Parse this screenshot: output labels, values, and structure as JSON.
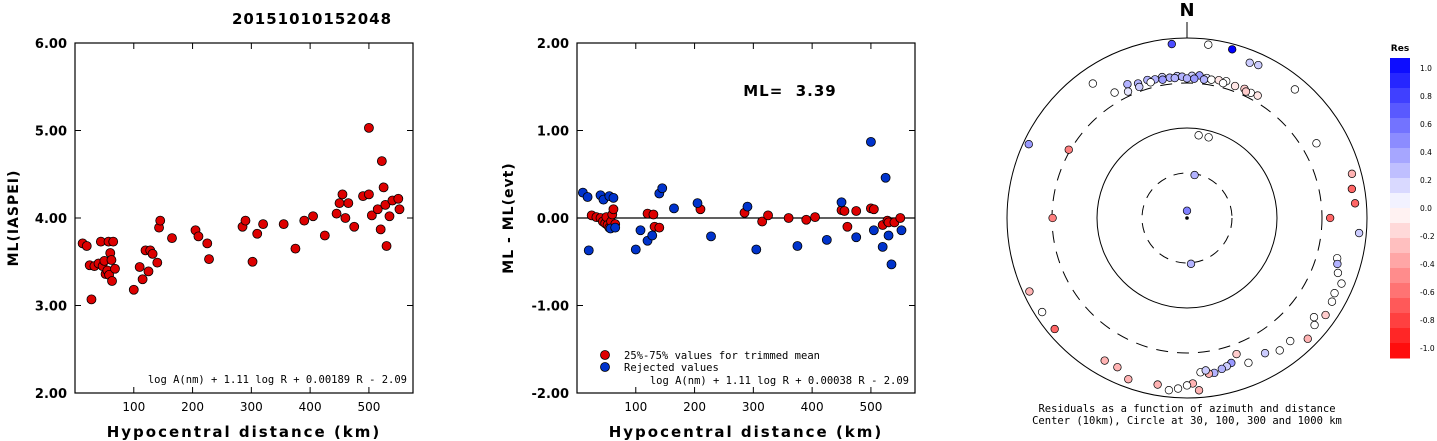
{
  "title": "20151010152048",
  "chart_data": [
    {
      "type": "scatter",
      "ylabel": "ML(IASPEI)",
      "xlabel": "Hypocentral distance (km)",
      "xlim": [
        0,
        575
      ],
      "ylim": [
        2.0,
        6.0
      ],
      "xticks": [
        "100",
        "200",
        "300",
        "400",
        "500"
      ],
      "yticks": [
        "2.00",
        "3.00",
        "4.00",
        "5.00",
        "6.00"
      ],
      "formula": "log A(nm) + 1.11 log R + 0.00189 R - 2.09",
      "color": "#dd0000",
      "series": [
        {
          "values": [
            [
              13,
              3.71
            ],
            [
              20,
              3.68
            ],
            [
              25,
              3.46
            ],
            [
              28,
              3.07
            ],
            [
              33,
              3.45
            ],
            [
              40,
              3.48
            ],
            [
              44,
              3.73
            ],
            [
              47,
              3.45
            ],
            [
              50,
              3.51
            ],
            [
              52,
              3.36
            ],
            [
              55,
              3.4
            ],
            [
              57,
              3.73
            ],
            [
              58,
              3.35
            ],
            [
              60,
              3.6
            ],
            [
              62,
              3.52
            ],
            [
              63,
              3.28
            ],
            [
              65,
              3.73
            ],
            [
              68,
              3.42
            ],
            [
              100,
              3.18
            ],
            [
              110,
              3.44
            ],
            [
              115,
              3.3
            ],
            [
              120,
              3.63
            ],
            [
              125,
              3.39
            ],
            [
              128,
              3.63
            ],
            [
              132,
              3.59
            ],
            [
              140,
              3.49
            ],
            [
              143,
              3.89
            ],
            [
              145,
              3.97
            ],
            [
              165,
              3.77
            ],
            [
              205,
              3.86
            ],
            [
              210,
              3.79
            ],
            [
              225,
              3.71
            ],
            [
              228,
              3.53
            ],
            [
              285,
              3.9
            ],
            [
              290,
              3.97
            ],
            [
              302,
              3.5
            ],
            [
              310,
              3.82
            ],
            [
              320,
              3.93
            ],
            [
              355,
              3.93
            ],
            [
              375,
              3.65
            ],
            [
              390,
              3.97
            ],
            [
              405,
              4.02
            ],
            [
              425,
              3.8
            ],
            [
              445,
              4.05
            ],
            [
              450,
              4.17
            ],
            [
              455,
              4.27
            ],
            [
              460,
              4.0
            ],
            [
              465,
              4.17
            ],
            [
              475,
              3.9
            ],
            [
              490,
              4.25
            ],
            [
              500,
              4.27
            ],
            [
              500,
              5.03
            ],
            [
              505,
              4.03
            ],
            [
              515,
              4.1
            ],
            [
              520,
              3.87
            ],
            [
              522,
              4.65
            ],
            [
              525,
              4.35
            ],
            [
              528,
              4.15
            ],
            [
              530,
              3.68
            ],
            [
              535,
              4.02
            ],
            [
              540,
              4.2
            ],
            [
              550,
              4.22
            ],
            [
              552,
              4.1
            ]
          ]
        }
      ]
    },
    {
      "type": "scatter",
      "ylabel": "ML - ML(evt)",
      "xlabel": "Hypocentral distance (km)",
      "xlim": [
        0,
        575
      ],
      "ylim": [
        -2.0,
        2.0
      ],
      "xticks": [
        "100",
        "200",
        "300",
        "400",
        "500"
      ],
      "yticks": [
        "-2.00",
        "-1.00",
        "0.00",
        "1.00",
        "2.00"
      ],
      "ml_label": "ML=  3.39",
      "formula": "log A(nm) + 1.11 log R + 0.00038 R - 2.09",
      "legend": [
        {
          "label": "25%-75% values for trimmed mean",
          "color": "#dd0000"
        },
        {
          "label": "Rejected values",
          "color": "#0033cc"
        }
      ],
      "series": [
        {
          "name": "25%-75% values for trimmed mean",
          "color": "#dd0000",
          "values": [
            [
              25,
              0.03
            ],
            [
              33,
              0.01
            ],
            [
              40,
              0.0
            ],
            [
              44,
              -0.04
            ],
            [
              48,
              -0.06
            ],
            [
              50,
              0.01
            ],
            [
              52,
              -0.08
            ],
            [
              55,
              -0.11
            ],
            [
              58,
              -0.04
            ],
            [
              60,
              0.04
            ],
            [
              62,
              0.1
            ],
            [
              65,
              -0.07
            ],
            [
              120,
              0.05
            ],
            [
              130,
              0.04
            ],
            [
              132,
              -0.1
            ],
            [
              140,
              -0.11
            ],
            [
              210,
              0.1
            ],
            [
              285,
              0.06
            ],
            [
              315,
              -0.04
            ],
            [
              325,
              0.03
            ],
            [
              360,
              0.0
            ],
            [
              390,
              -0.02
            ],
            [
              405,
              0.01
            ],
            [
              450,
              0.09
            ],
            [
              455,
              0.08
            ],
            [
              460,
              -0.1
            ],
            [
              475,
              0.08
            ],
            [
              500,
              0.11
            ],
            [
              505,
              0.1
            ],
            [
              520,
              -0.08
            ],
            [
              528,
              -0.03
            ],
            [
              530,
              -0.05
            ],
            [
              540,
              -0.05
            ],
            [
              550,
              0.0
            ]
          ]
        },
        {
          "name": "Rejected values",
          "color": "#0033cc",
          "values": [
            [
              10,
              0.29
            ],
            [
              18,
              0.24
            ],
            [
              20,
              -0.37
            ],
            [
              40,
              0.26
            ],
            [
              45,
              0.21
            ],
            [
              55,
              0.25
            ],
            [
              57,
              -0.12
            ],
            [
              62,
              0.23
            ],
            [
              65,
              -0.11
            ],
            [
              100,
              -0.36
            ],
            [
              108,
              -0.14
            ],
            [
              120,
              -0.26
            ],
            [
              128,
              -0.2
            ],
            [
              140,
              0.28
            ],
            [
              145,
              0.34
            ],
            [
              165,
              0.11
            ],
            [
              205,
              0.17
            ],
            [
              228,
              -0.21
            ],
            [
              290,
              0.13
            ],
            [
              305,
              -0.36
            ],
            [
              375,
              -0.32
            ],
            [
              425,
              -0.25
            ],
            [
              450,
              0.18
            ],
            [
              475,
              -0.22
            ],
            [
              500,
              0.87
            ],
            [
              505,
              -0.14
            ],
            [
              520,
              -0.33
            ],
            [
              525,
              0.46
            ],
            [
              530,
              -0.2
            ],
            [
              535,
              -0.53
            ],
            [
              552,
              -0.14
            ]
          ]
        }
      ]
    },
    {
      "type": "polar-scatter",
      "north_label": "N",
      "caption_line1": "Residuals as a function of azimuth and distance",
      "caption_line2": "Center (10km), Circle at 30, 100, 300 and 1000 km",
      "rings_km": [
        30,
        100,
        300,
        1000
      ],
      "colorbar": {
        "title": "Res",
        "ticks": [
          "1.0",
          "0.8",
          "0.6",
          "0.4",
          "0.2",
          "0.0",
          "-0.2",
          "-0.4",
          "-0.6",
          "-0.8",
          "-1.0"
        ]
      },
      "points": [
        {
          "az": 0,
          "dist": 12,
          "res": 0.5
        },
        {
          "az": 10,
          "dist": 30,
          "res": 0.3
        },
        {
          "az": 175,
          "dist": 32,
          "res": 0.3
        },
        {
          "az": 8,
          "dist": 90,
          "res": 0.0
        },
        {
          "az": 15,
          "dist": 90,
          "res": 0.0
        },
        {
          "az": 60,
          "dist": 500,
          "res": 0.0
        },
        {
          "az": 330,
          "dist": 440,
          "res": 0.0
        },
        {
          "az": 295,
          "dist": 1000,
          "res": 0.4
        },
        {
          "az": 355,
          "dist": 1000,
          "res": 0.7
        },
        {
          "az": 7,
          "dist": 1000,
          "res": 0.0
        },
        {
          "az": 15,
          "dist": 1000,
          "res": 1.0
        },
        {
          "az": 22,
          "dist": 820,
          "res": 0.2
        },
        {
          "az": 25,
          "dist": 850,
          "res": 0.2
        },
        {
          "az": 40,
          "dist": 830,
          "res": 0.0
        },
        {
          "az": 75,
          "dist": 900,
          "res": -0.3
        },
        {
          "az": 80,
          "dist": 820,
          "res": -0.6
        },
        {
          "az": 85,
          "dist": 850,
          "res": -0.6
        },
        {
          "az": 90,
          "dist": 420,
          "res": -0.6
        },
        {
          "az": 300,
          "dist": 350,
          "res": -0.5
        },
        {
          "az": 270,
          "dist": 330,
          "res": -0.5
        },
        {
          "az": 336,
          "dist": 460,
          "res": 0.3
        },
        {
          "az": 325,
          "dist": 750,
          "res": 0.0
        },
        {
          "az": 105,
          "dist": 590,
          "res": 0.0
        },
        {
          "az": 107,
          "dist": 620,
          "res": 0.3
        },
        {
          "az": 110,
          "dist": 680,
          "res": 0.0
        },
        {
          "az": 117,
          "dist": 780,
          "res": 0.0
        },
        {
          "az": 113,
          "dist": 830,
          "res": 0.0
        },
        {
          "az": 120,
          "dist": 820,
          "res": 0.0
        },
        {
          "az": 125,
          "dist": 860,
          "res": -0.2
        },
        {
          "az": 130,
          "dist": 800,
          "res": 0.0
        },
        {
          "az": 135,
          "dist": 900,
          "res": -0.3
        },
        {
          "az": 128,
          "dist": 690,
          "res": 0.0
        },
        {
          "az": 140,
          "dist": 680,
          "res": 0.0
        },
        {
          "az": 145,
          "dist": 700,
          "res": 0.0
        },
        {
          "az": 150,
          "dist": 600,
          "res": 0.2
        },
        {
          "az": 157,
          "dist": 620,
          "res": 0.0
        },
        {
          "az": 160,
          "dist": 440,
          "res": -0.2
        },
        {
          "az": 163,
          "dist": 530,
          "res": 0.4
        },
        {
          "az": 165,
          "dist": 560,
          "res": 0.2
        },
        {
          "az": 167,
          "dist": 580,
          "res": 0.3
        },
        {
          "az": 170,
          "dist": 620,
          "res": 0.3
        },
        {
          "az": 172,
          "dist": 620,
          "res": -0.3
        },
        {
          "az": 175,
          "dist": 580,
          "res": 0.0
        },
        {
          "az": 173,
          "dist": 560,
          "res": 0.2
        },
        {
          "az": 176,
          "dist": 950,
          "res": -0.3
        },
        {
          "az": 178,
          "dist": 780,
          "res": -0.3
        },
        {
          "az": 180,
          "dist": 820,
          "res": 0.0
        },
        {
          "az": 183,
          "dist": 900,
          "res": 0.0
        },
        {
          "az": 186,
          "dist": 960,
          "res": 0.0
        },
        {
          "az": 190,
          "dist": 860,
          "res": -0.3
        },
        {
          "az": 200,
          "dist": 920,
          "res": -0.3
        },
        {
          "az": 205,
          "dist": 760,
          "res": -0.3
        },
        {
          "az": 210,
          "dist": 760,
          "res": -0.3
        },
        {
          "az": 230,
          "dist": 950,
          "res": -0.6
        },
        {
          "az": 237,
          "dist": 950,
          "res": 0.0
        },
        {
          "az": 245,
          "dist": 980,
          "res": -0.3
        },
        {
          "az": 335,
          "dist": 380,
          "res": 0.1
        },
        {
          "az": 340,
          "dist": 420,
          "res": 0.3
        },
        {
          "az": 344,
          "dist": 425,
          "res": 0.3
        },
        {
          "az": 347,
          "dist": 410,
          "res": 0.3
        },
        {
          "az": 350,
          "dist": 420,
          "res": 0.2
        },
        {
          "az": 353,
          "dist": 400,
          "res": 0.3
        },
        {
          "az": 356,
          "dist": 410,
          "res": 0.2
        },
        {
          "az": 358,
          "dist": 400,
          "res": 0.3
        },
        {
          "az": 2,
          "dist": 410,
          "res": 0.2
        },
        {
          "az": 5,
          "dist": 420,
          "res": 0.4
        },
        {
          "az": 8,
          "dist": 400,
          "res": 0.1
        },
        {
          "az": 10,
          "dist": 390,
          "res": 0.0
        },
        {
          "az": 13,
          "dist": 400,
          "res": -0.1
        },
        {
          "az": 16,
          "dist": 410,
          "res": 0.0
        },
        {
          "az": 20,
          "dist": 390,
          "res": -0.1
        },
        {
          "az": 24,
          "dist": 400,
          "res": -0.2
        },
        {
          "az": 27,
          "dist": 390,
          "res": 0.0
        },
        {
          "az": 30,
          "dist": 400,
          "res": -0.1
        },
        {
          "az": 345,
          "dist": 390,
          "res": 0.0
        },
        {
          "az": 340,
          "dist": 380,
          "res": 0.2
        },
        {
          "az": 350,
          "dist": 390,
          "res": 0.4
        },
        {
          "az": 355,
          "dist": 390,
          "res": 0.3
        },
        {
          "az": 0,
          "dist": 380,
          "res": 0.3
        },
        {
          "az": 3,
          "dist": 380,
          "res": 0.4
        },
        {
          "az": 7,
          "dist": 380,
          "res": 0.3
        },
        {
          "az": 15,
          "dist": 380,
          "res": 0.0
        },
        {
          "az": 25,
          "dist": 380,
          "res": -0.2
        },
        {
          "az": 95,
          "dist": 950,
          "res": 0.2
        }
      ]
    }
  ]
}
